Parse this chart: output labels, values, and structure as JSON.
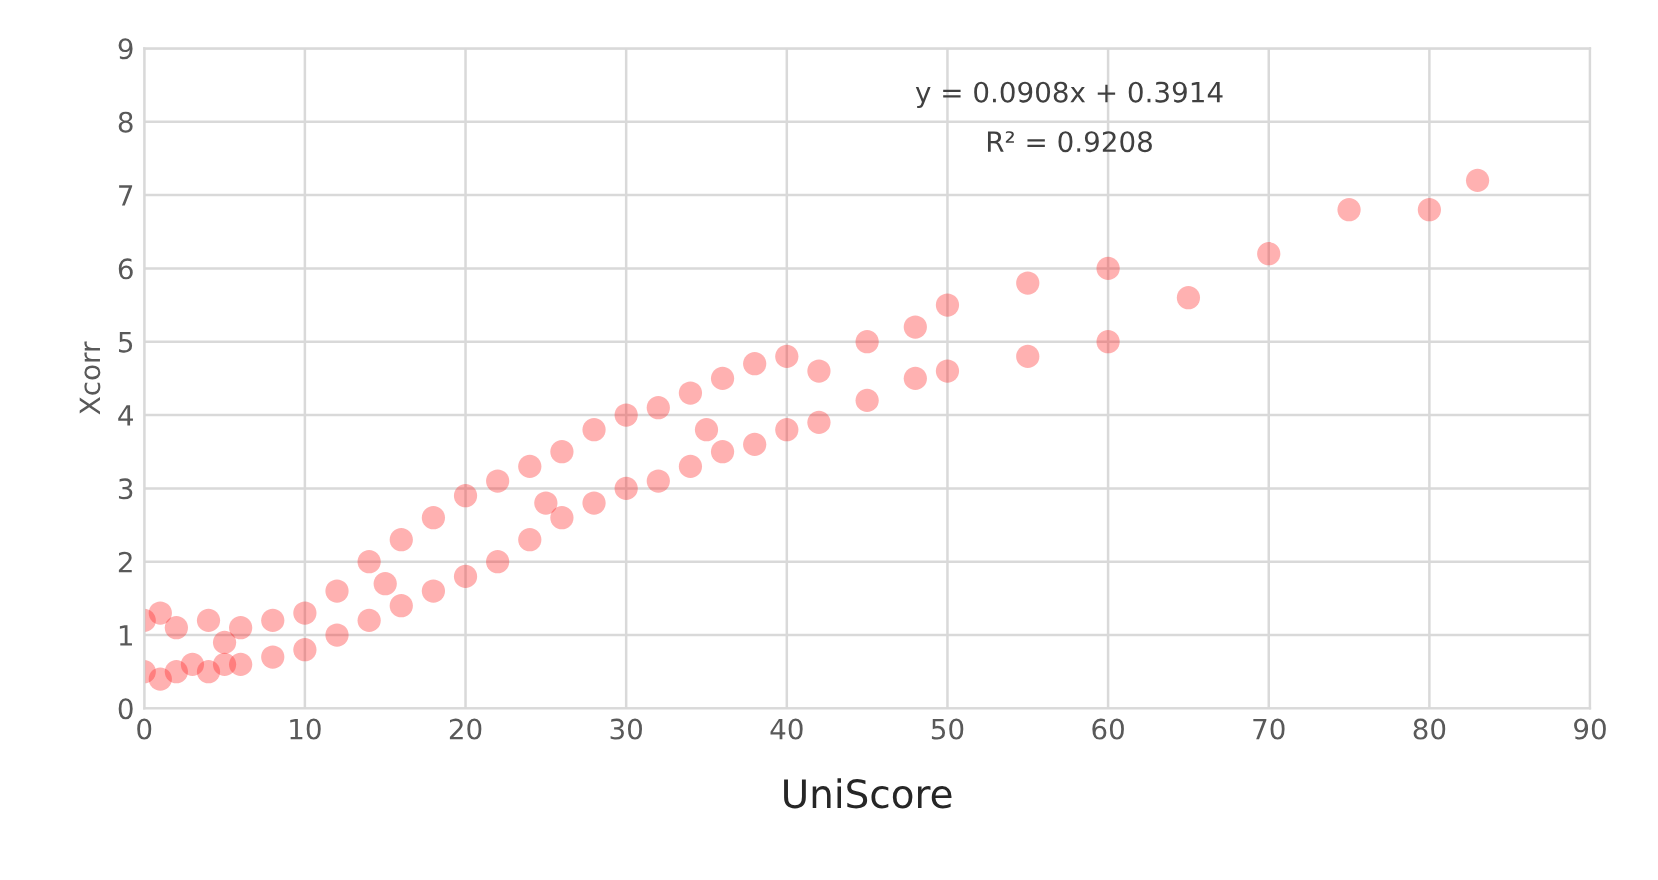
{
  "chart_data": {
    "type": "scatter",
    "xlabel": "UniScore",
    "ylabel": "Xcorr",
    "annotations": [
      "y = 0.0908x + 0.3914",
      "R² = 0.9208"
    ],
    "series": [
      {
        "color": "#ff2020",
        "x": [
          0,
          0,
          1,
          1,
          2,
          2,
          3,
          4,
          4,
          5,
          5,
          6,
          6,
          8,
          8,
          10,
          10,
          12,
          12,
          14,
          14,
          15,
          16,
          16,
          18,
          18,
          20,
          20,
          22,
          22,
          24,
          24,
          25,
          26,
          26,
          28,
          28,
          30,
          30,
          32,
          32,
          34,
          34,
          35,
          36,
          36,
          38,
          38,
          40,
          40,
          42,
          42,
          45,
          45,
          48,
          48,
          50,
          50,
          55,
          55,
          60,
          60,
          65,
          70,
          75,
          80,
          83
        ],
        "values": [
          0.5,
          1.2,
          0.4,
          1.3,
          0.5,
          1.1,
          0.6,
          0.5,
          1.2,
          0.6,
          0.9,
          1.1,
          0.6,
          0.7,
          1.2,
          0.8,
          1.3,
          1.0,
          1.6,
          1.2,
          2.0,
          1.7,
          1.4,
          2.3,
          1.6,
          2.6,
          1.8,
          2.9,
          2.0,
          3.1,
          2.3,
          3.3,
          2.8,
          2.6,
          3.5,
          2.8,
          3.8,
          3.0,
          4.0,
          3.1,
          4.1,
          3.3,
          4.3,
          3.8,
          3.5,
          4.5,
          3.6,
          4.7,
          3.8,
          4.8,
          3.9,
          4.6,
          4.2,
          5.0,
          4.5,
          5.2,
          4.6,
          5.5,
          4.8,
          5.8,
          5.0,
          6.0,
          5.6,
          6.2,
          6.8,
          6.8,
          7.2
        ]
      }
    ],
    "xlim": [
      0,
      90
    ],
    "xticks": [
      0,
      10,
      20,
      30,
      40,
      50,
      60,
      70,
      80,
      90
    ],
    "ylim": [
      0,
      9
    ],
    "yticks": [
      0,
      1,
      2,
      3,
      4,
      5,
      6,
      7,
      8,
      9
    ],
    "grid": true,
    "marker": "circle",
    "legend": false
  }
}
